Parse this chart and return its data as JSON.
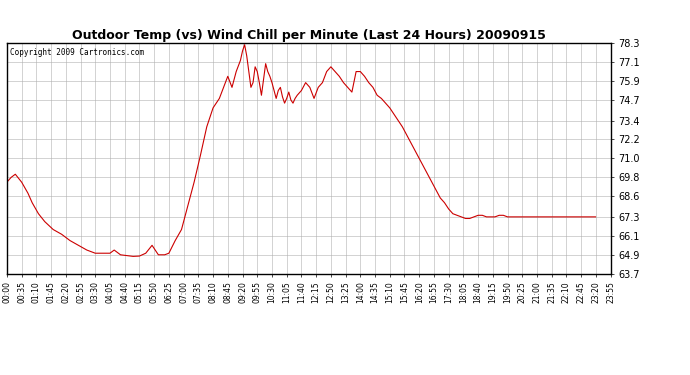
{
  "title": "Outdoor Temp (vs) Wind Chill per Minute (Last 24 Hours) 20090915",
  "copyright_text": "Copyright 2009 Cartronics.com",
  "line_color": "#cc0000",
  "background_color": "#ffffff",
  "grid_color": "#b0b0b0",
  "ylim": [
    63.7,
    78.3
  ],
  "yticks": [
    63.7,
    64.9,
    66.1,
    67.3,
    68.6,
    69.8,
    71.0,
    72.2,
    73.4,
    74.7,
    75.9,
    77.1,
    78.3
  ],
  "xtick_labels": [
    "00:00",
    "00:35",
    "01:10",
    "01:45",
    "02:20",
    "02:55",
    "03:30",
    "04:05",
    "04:40",
    "05:15",
    "05:50",
    "06:25",
    "07:00",
    "07:35",
    "08:10",
    "08:45",
    "09:20",
    "09:55",
    "10:30",
    "11:05",
    "11:40",
    "12:15",
    "12:50",
    "13:25",
    "14:00",
    "14:35",
    "15:10",
    "15:45",
    "16:20",
    "16:55",
    "17:30",
    "18:05",
    "18:40",
    "19:15",
    "19:50",
    "20:25",
    "21:00",
    "21:35",
    "22:10",
    "22:45",
    "23:20",
    "23:55"
  ],
  "key_points": [
    [
      0,
      69.5
    ],
    [
      10,
      69.8
    ],
    [
      20,
      70.0
    ],
    [
      35,
      69.5
    ],
    [
      50,
      68.8
    ],
    [
      60,
      68.2
    ],
    [
      75,
      67.5
    ],
    [
      90,
      67.0
    ],
    [
      110,
      66.5
    ],
    [
      130,
      66.2
    ],
    [
      150,
      65.8
    ],
    [
      170,
      65.5
    ],
    [
      190,
      65.2
    ],
    [
      210,
      65.0
    ],
    [
      230,
      65.0
    ],
    [
      245,
      65.0
    ],
    [
      255,
      65.2
    ],
    [
      270,
      64.9
    ],
    [
      285,
      64.85
    ],
    [
      300,
      64.8
    ],
    [
      315,
      64.82
    ],
    [
      330,
      65.0
    ],
    [
      345,
      65.5
    ],
    [
      360,
      64.9
    ],
    [
      375,
      64.9
    ],
    [
      385,
      65.0
    ],
    [
      400,
      65.8
    ],
    [
      415,
      66.5
    ],
    [
      430,
      68.0
    ],
    [
      445,
      69.5
    ],
    [
      460,
      71.2
    ],
    [
      475,
      73.0
    ],
    [
      490,
      74.2
    ],
    [
      505,
      74.8
    ],
    [
      515,
      75.5
    ],
    [
      525,
      76.2
    ],
    [
      535,
      75.5
    ],
    [
      545,
      76.5
    ],
    [
      555,
      77.2
    ],
    [
      560,
      77.8
    ],
    [
      565,
      78.2
    ],
    [
      570,
      77.5
    ],
    [
      575,
      76.5
    ],
    [
      580,
      75.5
    ],
    [
      585,
      75.8
    ],
    [
      590,
      76.8
    ],
    [
      595,
      76.5
    ],
    [
      600,
      75.8
    ],
    [
      605,
      75.0
    ],
    [
      610,
      76.0
    ],
    [
      615,
      77.0
    ],
    [
      620,
      76.5
    ],
    [
      625,
      76.2
    ],
    [
      630,
      75.8
    ],
    [
      635,
      75.3
    ],
    [
      640,
      74.8
    ],
    [
      645,
      75.3
    ],
    [
      650,
      75.5
    ],
    [
      655,
      74.9
    ],
    [
      660,
      74.5
    ],
    [
      665,
      74.8
    ],
    [
      670,
      75.2
    ],
    [
      675,
      74.7
    ],
    [
      680,
      74.5
    ],
    [
      685,
      74.8
    ],
    [
      690,
      75.0
    ],
    [
      700,
      75.3
    ],
    [
      710,
      75.8
    ],
    [
      720,
      75.5
    ],
    [
      730,
      74.8
    ],
    [
      740,
      75.5
    ],
    [
      750,
      75.8
    ],
    [
      760,
      76.5
    ],
    [
      770,
      76.8
    ],
    [
      780,
      76.5
    ],
    [
      790,
      76.2
    ],
    [
      800,
      75.8
    ],
    [
      810,
      75.5
    ],
    [
      820,
      75.2
    ],
    [
      830,
      76.5
    ],
    [
      840,
      76.5
    ],
    [
      850,
      76.2
    ],
    [
      860,
      75.8
    ],
    [
      870,
      75.5
    ],
    [
      880,
      75.0
    ],
    [
      890,
      74.8
    ],
    [
      900,
      74.5
    ],
    [
      910,
      74.2
    ],
    [
      920,
      73.8
    ],
    [
      930,
      73.4
    ],
    [
      940,
      73.0
    ],
    [
      950,
      72.5
    ],
    [
      960,
      72.0
    ],
    [
      970,
      71.5
    ],
    [
      980,
      71.0
    ],
    [
      990,
      70.5
    ],
    [
      1000,
      70.0
    ],
    [
      1010,
      69.5
    ],
    [
      1020,
      69.0
    ],
    [
      1030,
      68.5
    ],
    [
      1040,
      68.2
    ],
    [
      1050,
      67.8
    ],
    [
      1060,
      67.5
    ],
    [
      1070,
      67.4
    ],
    [
      1080,
      67.3
    ],
    [
      1090,
      67.2
    ],
    [
      1100,
      67.2
    ],
    [
      1110,
      67.3
    ],
    [
      1120,
      67.4
    ],
    [
      1130,
      67.4
    ],
    [
      1140,
      67.3
    ],
    [
      1150,
      67.3
    ],
    [
      1160,
      67.3
    ],
    [
      1170,
      67.4
    ],
    [
      1180,
      67.4
    ],
    [
      1190,
      67.3
    ],
    [
      1200,
      67.3
    ],
    [
      1210,
      67.3
    ],
    [
      1220,
      67.3
    ],
    [
      1230,
      67.3
    ],
    [
      1240,
      67.3
    ],
    [
      1250,
      67.3
    ],
    [
      1260,
      67.3
    ],
    [
      1270,
      67.3
    ],
    [
      1280,
      67.3
    ],
    [
      1290,
      67.3
    ],
    [
      1300,
      67.3
    ],
    [
      1310,
      67.3
    ],
    [
      1320,
      67.3
    ],
    [
      1330,
      67.3
    ],
    [
      1340,
      67.3
    ],
    [
      1350,
      67.3
    ],
    [
      1360,
      67.3
    ],
    [
      1370,
      67.3
    ],
    [
      1380,
      67.3
    ],
    [
      1390,
      67.3
    ],
    [
      1399,
      67.3
    ]
  ]
}
